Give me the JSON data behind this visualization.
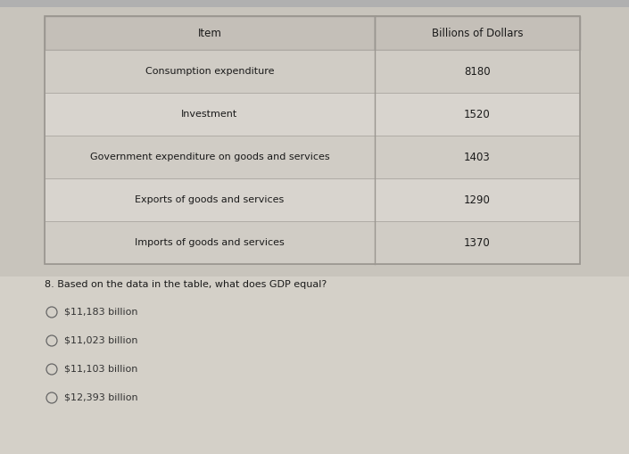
{
  "table_headers": [
    "Item",
    "Billions of Dollars"
  ],
  "table_rows": [
    [
      "Consumption expenditure",
      "8180"
    ],
    [
      "Investment",
      "1520"
    ],
    [
      "Government expenditure on goods and services",
      "1403"
    ],
    [
      "Exports of goods and services",
      "1290"
    ],
    [
      "Imports of goods and services",
      "1370"
    ]
  ],
  "question": "8. Based on the data in the table, what does GDP equal?",
  "options": [
    "$11,183 billion",
    "$11,023 billion",
    "$11,103 billion",
    "$12,393 billion"
  ],
  "top_bar_color": "#b0b0b0",
  "upper_bg_color": "#c8c4bc",
  "lower_bg_color": "#d4d0c8",
  "table_outer_bg": "#cdc9c2",
  "header_bg": "#c4bfb8",
  "row_bg1": "#d0ccc5",
  "row_bg2": "#d8d4ce",
  "table_border_color": "#9a9690",
  "inner_border_color": "#b0aca6",
  "text_color": "#1a1a1a",
  "option_text_color": "#333333",
  "fig_width": 7.05,
  "fig_height": 5.09,
  "dpi": 100
}
